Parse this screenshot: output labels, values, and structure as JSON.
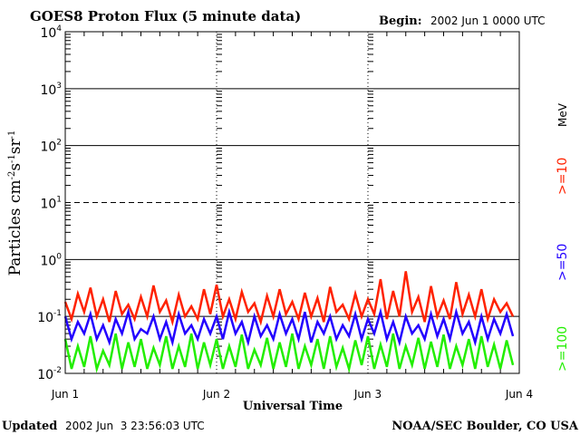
{
  "header": {
    "title": "GOES8 Proton Flux (5 minute data)",
    "begin_label": "Begin:",
    "begin_value": "2002 Jun 1 0000 UTC"
  },
  "footer": {
    "updated_label": "Updated",
    "updated_value": "2002 Jun  3 23:56:03 UTC",
    "source": "NOAA/SEC Boulder, CO USA"
  },
  "colors": {
    "ge10": "#ff2200",
    "ge50": "#2200ff",
    "ge100": "#22ee00"
  },
  "chart_data": {
    "type": "line",
    "title": "GOES8 Proton Flux (5 minute data)",
    "xlabel": "Universal Time",
    "ylabel": "Particles cm-2 s-1 sr-1",
    "yscale": "log",
    "ylim": [
      0.01,
      10000
    ],
    "xlim_days": [
      0,
      3
    ],
    "x_tick_labels": [
      "Jun 1",
      "Jun 2",
      "Jun 3",
      "Jun 4"
    ],
    "y_tick_labels": [
      {
        "base": "10",
        "exp": "4"
      },
      {
        "base": "10",
        "exp": "3"
      },
      {
        "base": "10",
        "exp": "2"
      },
      {
        "base": "10",
        "exp": "1"
      },
      {
        "base": "10",
        "exp": "0"
      },
      {
        "base": "10",
        "exp": "-1"
      },
      {
        "base": "10",
        "exp": "-2"
      }
    ],
    "legend_unit": "MeV",
    "sample_interval_hours": 1,
    "series": [
      {
        "name": ">=10",
        "color": "#ff2200",
        "values": [
          0.18,
          0.09,
          0.25,
          0.12,
          0.32,
          0.1,
          0.2,
          0.08,
          0.28,
          0.11,
          0.16,
          0.09,
          0.22,
          0.1,
          0.35,
          0.12,
          0.19,
          0.08,
          0.24,
          0.1,
          0.15,
          0.09,
          0.3,
          0.11,
          0.36,
          0.1,
          0.2,
          0.09,
          0.27,
          0.12,
          0.17,
          0.08,
          0.23,
          0.1,
          0.3,
          0.11,
          0.18,
          0.09,
          0.26,
          0.1,
          0.21,
          0.08,
          0.33,
          0.12,
          0.16,
          0.09,
          0.25,
          0.1,
          0.2,
          0.11,
          0.45,
          0.09,
          0.28,
          0.1,
          0.62,
          0.12,
          0.22,
          0.08,
          0.34,
          0.1,
          0.19,
          0.09,
          0.4,
          0.11,
          0.24,
          0.1,
          0.3,
          0.09,
          0.2,
          0.12,
          0.17,
          0.1
        ]
      },
      {
        "name": ">=50",
        "color": "#2200ff",
        "values": [
          0.1,
          0.04,
          0.08,
          0.05,
          0.11,
          0.04,
          0.07,
          0.035,
          0.09,
          0.05,
          0.12,
          0.04,
          0.06,
          0.05,
          0.1,
          0.04,
          0.08,
          0.035,
          0.11,
          0.05,
          0.07,
          0.04,
          0.09,
          0.05,
          0.1,
          0.04,
          0.12,
          0.05,
          0.08,
          0.035,
          0.1,
          0.045,
          0.07,
          0.04,
          0.11,
          0.05,
          0.09,
          0.04,
          0.12,
          0.035,
          0.08,
          0.05,
          0.1,
          0.04,
          0.07,
          0.045,
          0.11,
          0.04,
          0.09,
          0.05,
          0.12,
          0.04,
          0.08,
          0.035,
          0.1,
          0.05,
          0.07,
          0.04,
          0.11,
          0.045,
          0.09,
          0.04,
          0.12,
          0.05,
          0.08,
          0.035,
          0.1,
          0.04,
          0.09,
          0.05,
          0.11,
          0.045
        ]
      },
      {
        "name": ">=100",
        "color": "#22ee00",
        "values": [
          0.04,
          0.012,
          0.03,
          0.013,
          0.045,
          0.012,
          0.025,
          0.014,
          0.05,
          0.012,
          0.035,
          0.013,
          0.04,
          0.012,
          0.028,
          0.014,
          0.045,
          0.012,
          0.03,
          0.013,
          0.05,
          0.012,
          0.035,
          0.014,
          0.04,
          0.012,
          0.03,
          0.013,
          0.048,
          0.012,
          0.026,
          0.014,
          0.042,
          0.012,
          0.035,
          0.013,
          0.05,
          0.012,
          0.03,
          0.014,
          0.04,
          0.012,
          0.045,
          0.013,
          0.028,
          0.012,
          0.038,
          0.014,
          0.045,
          0.012,
          0.032,
          0.013,
          0.05,
          0.012,
          0.03,
          0.014,
          0.042,
          0.012,
          0.036,
          0.013,
          0.048,
          0.012,
          0.03,
          0.014,
          0.04,
          0.012,
          0.045,
          0.013,
          0.032,
          0.012,
          0.038,
          0.014
        ]
      }
    ]
  }
}
